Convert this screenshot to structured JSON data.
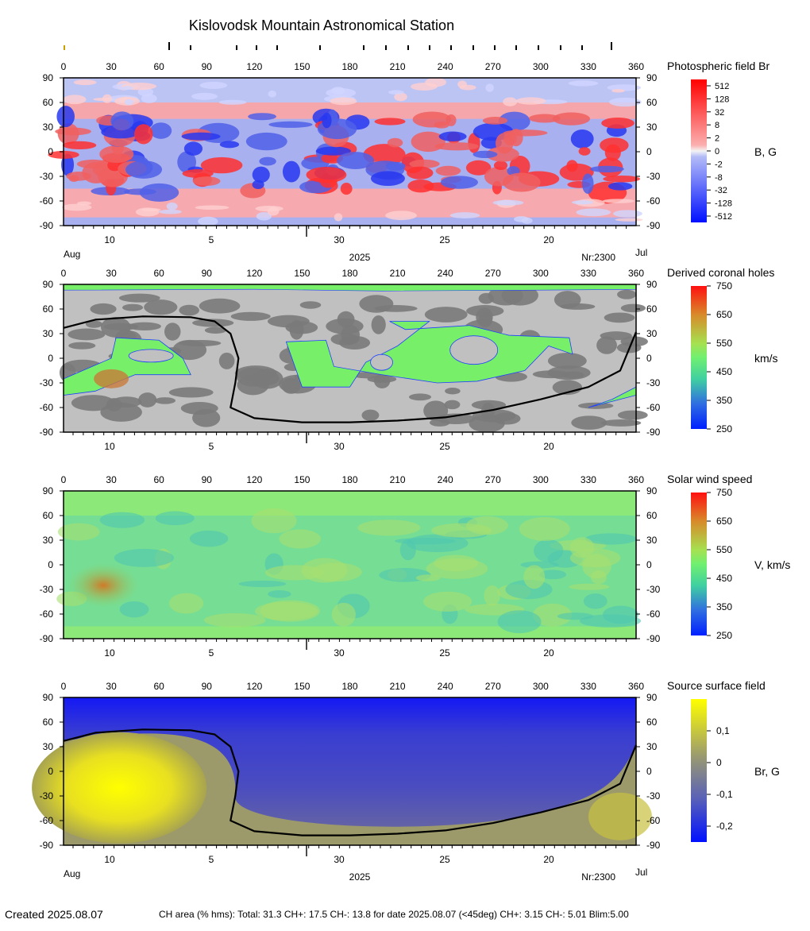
{
  "title": "Kislovodsk Mountain Astronomical Station",
  "chart_data": [
    {
      "type": "heatmap",
      "id": "photospheric",
      "title": "Photospheric field Br",
      "colorbar_label": "B, G",
      "colorbar_ticks": [
        "512",
        "128",
        "32",
        "8",
        "2",
        "0",
        "-2",
        "-8",
        "-32",
        "-128",
        "-512"
      ],
      "x_ticks": [
        "0",
        "30",
        "60",
        "90",
        "120",
        "150",
        "180",
        "210",
        "240",
        "270",
        "300",
        "330",
        "360"
      ],
      "y_ticks": [
        "90",
        "60",
        "30",
        "0",
        "-30",
        "-60",
        "-90"
      ],
      "xlim": [
        0,
        360
      ],
      "ylim": [
        -90,
        90
      ],
      "date_ticks": [
        "10",
        "5",
        "30",
        "25",
        "20"
      ],
      "date_labels": {
        "left": "Aug",
        "center": "2025",
        "rotation": "Nr:2300",
        "right": "Jul"
      }
    },
    {
      "type": "heatmap",
      "id": "coronal_holes",
      "title": "Derived coronal holes",
      "colorbar_label": "km/s",
      "colorbar_ticks": [
        "750",
        "650",
        "550",
        "450",
        "350",
        "250"
      ],
      "x_ticks": [
        "0",
        "30",
        "60",
        "90",
        "120",
        "150",
        "180",
        "210",
        "240",
        "270",
        "300",
        "330",
        "360"
      ],
      "y_ticks": [
        "90",
        "60",
        "30",
        "0",
        "-30",
        "-60",
        "-90"
      ],
      "xlim": [
        0,
        360
      ],
      "ylim": [
        -90,
        90
      ],
      "date_ticks": [
        "10",
        "5",
        "30",
        "25",
        "20"
      ]
    },
    {
      "type": "heatmap",
      "id": "solar_wind",
      "title": "Solar wind speed",
      "colorbar_label": "V, km/s",
      "colorbar_ticks": [
        "750",
        "650",
        "550",
        "450",
        "350",
        "250"
      ],
      "x_ticks": [
        "0",
        "30",
        "60",
        "90",
        "120",
        "150",
        "180",
        "210",
        "240",
        "270",
        "300",
        "330",
        "360"
      ],
      "y_ticks": [
        "90",
        "60",
        "30",
        "0",
        "-30",
        "-60",
        "-90"
      ],
      "xlim": [
        0,
        360
      ],
      "ylim": [
        -90,
        90
      ],
      "date_ticks": [
        "10",
        "5",
        "30",
        "25",
        "20"
      ]
    },
    {
      "type": "heatmap",
      "id": "source_surface",
      "title": "Source surface field",
      "colorbar_label": "Br, G",
      "colorbar_ticks": [
        "0,1",
        "0",
        "-0,1",
        "-0,2"
      ],
      "x_ticks": [
        "0",
        "30",
        "60",
        "90",
        "120",
        "150",
        "180",
        "210",
        "240",
        "270",
        "300",
        "330",
        "360"
      ],
      "y_ticks": [
        "90",
        "60",
        "30",
        "0",
        "-30",
        "-60",
        "-90"
      ],
      "xlim": [
        0,
        360
      ],
      "ylim": [
        -90,
        90
      ],
      "date_ticks": [
        "10",
        "5",
        "30",
        "25",
        "20"
      ],
      "date_labels": {
        "left": "Aug",
        "center": "2025",
        "rotation": "Nr:2300",
        "right": "Jul"
      }
    }
  ],
  "neutral_line": [
    [
      0,
      37
    ],
    [
      20,
      47
    ],
    [
      50,
      51
    ],
    [
      80,
      50
    ],
    [
      95,
      45
    ],
    [
      105,
      30
    ],
    [
      110,
      0
    ],
    [
      108,
      -30
    ],
    [
      105,
      -60
    ],
    [
      120,
      -73
    ],
    [
      150,
      -78
    ],
    [
      180,
      -78
    ],
    [
      210,
      -76
    ],
    [
      240,
      -72
    ],
    [
      270,
      -63
    ],
    [
      300,
      -50
    ],
    [
      330,
      -35
    ],
    [
      350,
      -15
    ],
    [
      360,
      32
    ]
  ],
  "footer": {
    "created": "Created  2025.08.07",
    "ch_area": "CH area (% hms): Total: 31.3 CH+: 17.5   CH-: 13.8 for date 2025.08.07 (<45deg) CH+: 3.15    CH-: 5.01 Blim:5.00"
  }
}
